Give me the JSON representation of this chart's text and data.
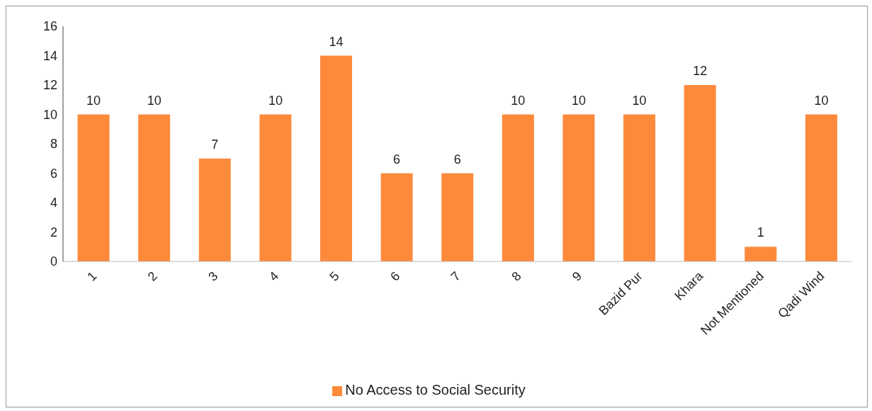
{
  "chart_data": {
    "type": "bar",
    "categories": [
      "1",
      "2",
      "3",
      "4",
      "5",
      "6",
      "7",
      "8",
      "9",
      "Bazid Pur",
      "Khara",
      "Not Mentioned",
      "Qadi Wind"
    ],
    "series": [
      {
        "name": "No Access to Social Security",
        "color": "#fd8a3b",
        "values": [
          10,
          10,
          7,
          10,
          14,
          6,
          6,
          10,
          10,
          10,
          12,
          1,
          10
        ]
      }
    ],
    "ylim": [
      0,
      16
    ],
    "yticks": [
      0,
      2,
      4,
      6,
      8,
      10,
      12,
      14,
      16
    ],
    "grid": false,
    "legend": "bottom",
    "data_labels": true
  }
}
